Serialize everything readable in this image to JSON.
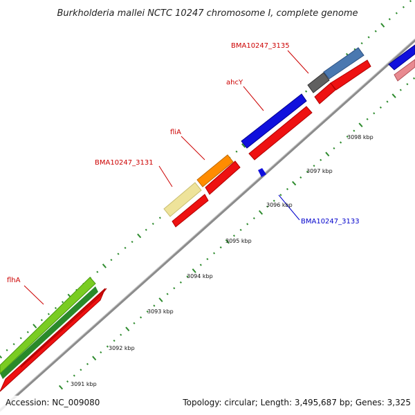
{
  "title": "Burkholderia mallei NCTC 10247 chromosome I, complete genome",
  "footer": {
    "accession": "Accession: NC_009080",
    "summary": "Topology: circular; Length: 3,495,687 bp; Genes: 3,325"
  },
  "colors": {
    "backbone": "#8c8c8c",
    "tick": "#2e8b2e",
    "label_red": "#cc0000",
    "label_blue": "#0000cc",
    "cds_red": "#ee1111",
    "blue_gene": "#1010dd",
    "orange_gene": "#ff8c00",
    "khaki_gene": "#eee39a",
    "grey_gene": "#606060",
    "steel_gene": "#4a78b0",
    "pink_gene": "#e88a90",
    "lime_gene": "#7acc22",
    "green_gene": "#2a8a2a"
  },
  "kbp_labels": [
    "3091 kbp",
    "3092 kbp",
    "3093 kbp",
    "3094 kbp",
    "3095 kbp",
    "3096 kbp",
    "3097 kbp",
    "3098 kbp"
  ],
  "gene_labels": [
    {
      "name": "flhA",
      "color": "red"
    },
    {
      "name": "BMA10247_3131",
      "color": "red"
    },
    {
      "name": "fliA",
      "color": "red"
    },
    {
      "name": "ahcY",
      "color": "red"
    },
    {
      "name": "BMA10247_3135",
      "color": "red"
    },
    {
      "name": "BMA10247_3133",
      "color": "blue"
    }
  ]
}
